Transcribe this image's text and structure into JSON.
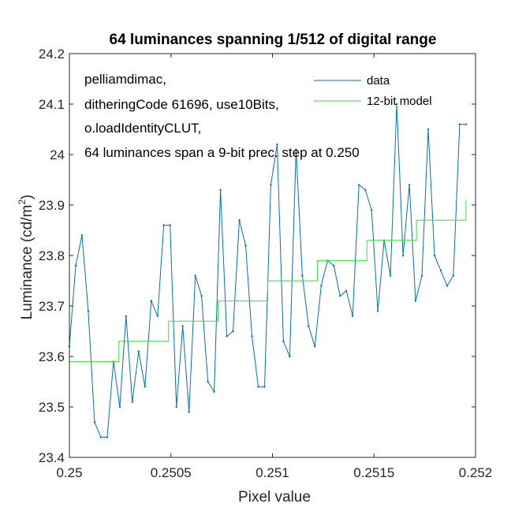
{
  "chart_data": {
    "type": "line",
    "title": "64 luminances spanning 1/512 of digital range",
    "xlabel": "Pixel value",
    "ylabel_main": "Luminance (cd/m",
    "ylabel_sup": "2",
    "ylabel_close": ")",
    "xlim": [
      0.25,
      0.252
    ],
    "ylim": [
      23.4,
      24.2
    ],
    "xticks": [
      0.25,
      0.2505,
      0.251,
      0.2515,
      0.252
    ],
    "xtick_labels": [
      "0.25",
      "0.2505",
      "0.251",
      "0.2515",
      "0.252"
    ],
    "yticks": [
      23.4,
      23.5,
      23.6,
      23.7,
      23.8,
      23.9,
      24.0,
      24.1,
      24.2
    ],
    "ytick_labels": [
      "23.4",
      "23.5",
      "23.6",
      "23.7",
      "23.8",
      "23.9",
      "24",
      "24.1",
      "24.2"
    ],
    "grid": false,
    "legend_position": "top-right",
    "annotation_lines": [
      "pelliamdimac,",
      "ditheringCode 61696, use10Bits,",
      "o.loadIdentityCLUT,",
      "64 luminances span a 9-bit prec. step at 0.250"
    ],
    "series": [
      {
        "name": "data",
        "color": "#0072bd",
        "x": [
          0.25,
          0.250031,
          0.250062,
          0.250093,
          0.250124,
          0.250155,
          0.250186,
          0.250217,
          0.250248,
          0.250279,
          0.25031,
          0.250341,
          0.250372,
          0.250403,
          0.250434,
          0.250465,
          0.250496,
          0.250527,
          0.250558,
          0.250589,
          0.25062,
          0.250651,
          0.250682,
          0.250713,
          0.250744,
          0.250775,
          0.250806,
          0.250837,
          0.250868,
          0.250899,
          0.25093,
          0.250961,
          0.250992,
          0.251023,
          0.251054,
          0.251085,
          0.251116,
          0.251147,
          0.251178,
          0.251209,
          0.25124,
          0.251271,
          0.251302,
          0.251333,
          0.251364,
          0.251395,
          0.251426,
          0.251457,
          0.251488,
          0.251519,
          0.25155,
          0.251581,
          0.251612,
          0.251643,
          0.251674,
          0.251705,
          0.251736,
          0.251767,
          0.251798,
          0.251829,
          0.25186,
          0.251891,
          0.251922,
          0.251953
        ],
        "values": [
          23.62,
          23.78,
          23.84,
          23.69,
          23.47,
          23.44,
          23.44,
          23.59,
          23.5,
          23.68,
          23.51,
          23.61,
          23.54,
          23.71,
          23.68,
          23.86,
          23.86,
          23.5,
          23.66,
          23.49,
          23.76,
          23.72,
          23.55,
          23.53,
          23.93,
          23.64,
          23.65,
          23.87,
          23.82,
          23.64,
          23.54,
          23.54,
          23.94,
          24.02,
          23.63,
          23.6,
          24.01,
          23.76,
          23.66,
          23.62,
          23.74,
          23.79,
          23.78,
          23.72,
          23.73,
          23.68,
          23.94,
          23.93,
          23.89,
          23.69,
          23.83,
          23.76,
          24.1,
          23.8,
          23.94,
          23.71,
          23.76,
          24.05,
          23.8,
          23.77,
          23.74,
          23.76,
          24.06,
          24.06
        ]
      },
      {
        "name": "12-bit model",
        "color": "#33e633",
        "type": "step",
        "x": [
          0.25,
          0.250244,
          0.250244,
          0.250488,
          0.250488,
          0.250732,
          0.250732,
          0.250977,
          0.250977,
          0.251221,
          0.251221,
          0.251465,
          0.251465,
          0.251709,
          0.251709,
          0.251953,
          0.251953
        ],
        "values": [
          23.59,
          23.59,
          23.63,
          23.63,
          23.67,
          23.67,
          23.71,
          23.71,
          23.75,
          23.75,
          23.79,
          23.79,
          23.83,
          23.83,
          23.87,
          23.87,
          23.91
        ]
      }
    ]
  }
}
